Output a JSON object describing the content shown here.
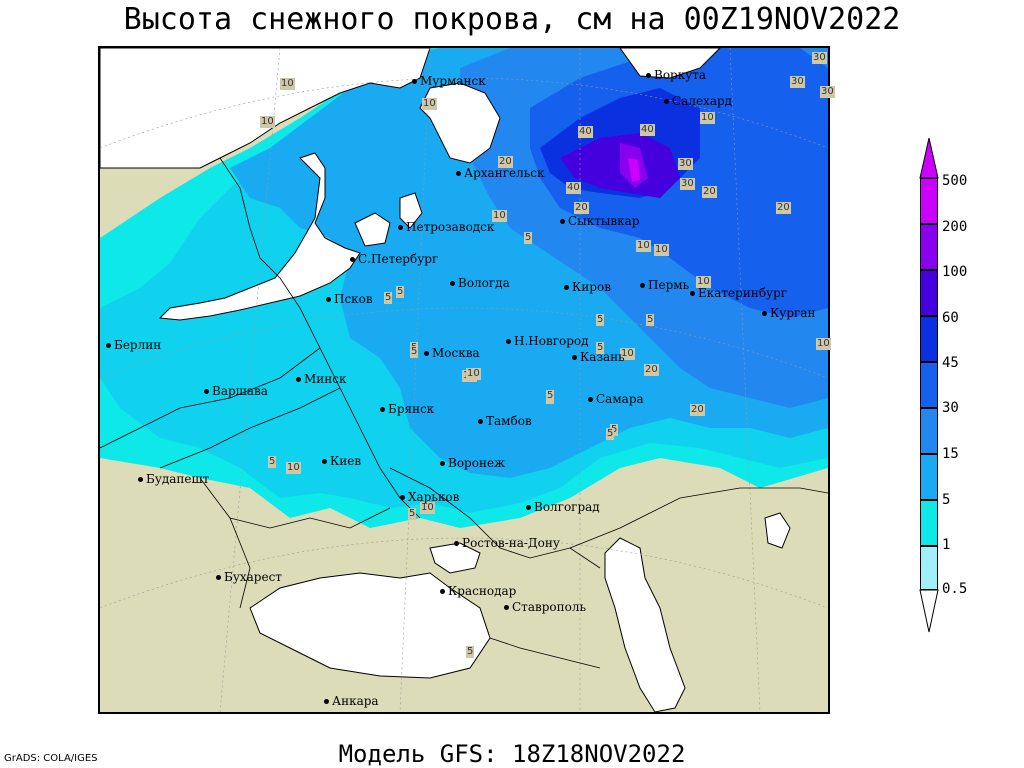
{
  "title": "Высота снежного покрова, см на 00Z19NOV2022",
  "footer": "Модель GFS: 18Z18NOV2022",
  "credit": "GrADS: COLA/IGES",
  "cities": [
    {
      "id": "murmansk",
      "name": "Мурманск"
    },
    {
      "id": "vorkuta",
      "name": "Воркута"
    },
    {
      "id": "salekhard",
      "name": "Салехард"
    },
    {
      "id": "arkhangelsk",
      "name": "Архангельск"
    },
    {
      "id": "syktyvkar",
      "name": "Сыктывкар"
    },
    {
      "id": "petrozavodsk",
      "name": "Петрозаводск"
    },
    {
      "id": "spb",
      "name": "С.Петербург"
    },
    {
      "id": "vologda",
      "name": "Вологда"
    },
    {
      "id": "kirov",
      "name": "Киров"
    },
    {
      "id": "perm",
      "name": "Пермь"
    },
    {
      "id": "ekaterinburg",
      "name": "Екатеринбург"
    },
    {
      "id": "kurgan",
      "name": "Курган"
    },
    {
      "id": "pskov",
      "name": "Псков"
    },
    {
      "id": "berlin",
      "name": "Берлин"
    },
    {
      "id": "moskva",
      "name": "Москва"
    },
    {
      "id": "nnovgorod",
      "name": "Н.Новгород"
    },
    {
      "id": "kazan",
      "name": "Казань"
    },
    {
      "id": "samara",
      "name": "Самара"
    },
    {
      "id": "varshava",
      "name": "Варшава"
    },
    {
      "id": "minsk",
      "name": "Минск"
    },
    {
      "id": "bryansk",
      "name": "Брянск"
    },
    {
      "id": "tambov",
      "name": "Тамбов"
    },
    {
      "id": "kiev",
      "name": "Киев"
    },
    {
      "id": "voronezh",
      "name": "Воронеж"
    },
    {
      "id": "budapesht",
      "name": "Будапешт"
    },
    {
      "id": "kharkov",
      "name": "Харьков"
    },
    {
      "id": "volgograd",
      "name": "Волгоград"
    },
    {
      "id": "rostov",
      "name": "Ростов-на-Дону"
    },
    {
      "id": "bukharest",
      "name": "Бухарест"
    },
    {
      "id": "krasnodar",
      "name": "Краснодар"
    },
    {
      "id": "stavropol",
      "name": "Ставрополь"
    },
    {
      "id": "ankara",
      "name": "Анкара"
    }
  ],
  "contour_labels": [
    "10",
    "30",
    "10",
    "30",
    "30",
    "20",
    "40",
    "40",
    "20",
    "40",
    "30",
    "20",
    "10",
    "10",
    "30",
    "20",
    "5",
    "10",
    "10",
    "20",
    "10",
    "5",
    "5",
    "5",
    "5",
    "10",
    "5",
    "20",
    "10",
    "5",
    "10",
    "5",
    "10",
    "5",
    "10",
    "5",
    "5",
    "5",
    "5",
    "10",
    "5",
    "10",
    "5"
  ],
  "legend": {
    "levels": [
      "500",
      "200",
      "100",
      "60",
      "45",
      "30",
      "15",
      "5",
      "1",
      "0.5"
    ],
    "colors": {
      "l200": "#cc00ff",
      "l100": "#8800ee",
      "l60": "#4400dd",
      "l45": "#0a30e0",
      "l30": "#1660ee",
      "l15": "#2288f0",
      "l5": "#1aaaf2",
      "l1": "#10d2ee",
      "l05": "#0ee8e8",
      "l0": "#a0f0f8"
    }
  }
}
